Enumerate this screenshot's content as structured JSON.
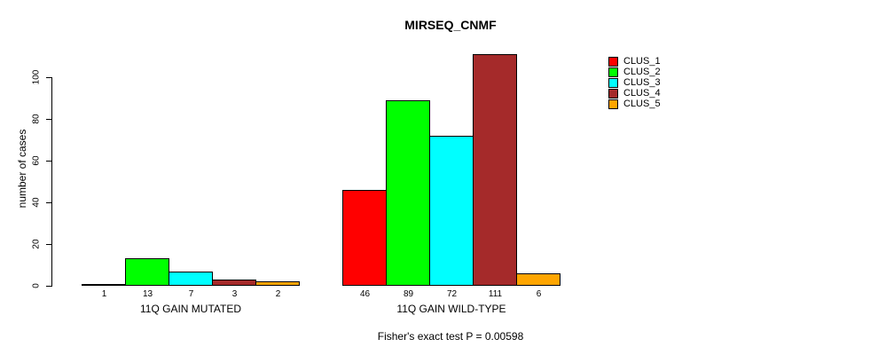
{
  "chart_data": {
    "type": "bar",
    "title": "MIRSEQ_CNMF",
    "ylabel": "number of cases",
    "xlabel": "",
    "annotation": "Fisher's exact test P = 0.00598",
    "categories": [
      "11Q GAIN MUTATED",
      "11Q GAIN WILD-TYPE"
    ],
    "series": [
      {
        "name": "CLUS_1",
        "color": "#ff0000",
        "values": [
          1,
          46
        ]
      },
      {
        "name": "CLUS_2",
        "color": "#00ff00",
        "values": [
          13,
          89
        ]
      },
      {
        "name": "CLUS_3",
        "color": "#00ffff",
        "values": [
          7,
          72
        ]
      },
      {
        "name": "CLUS_4",
        "color": "#a52a2a",
        "values": [
          3,
          111
        ]
      },
      {
        "name": "CLUS_5",
        "color": "#ffa500",
        "values": [
          2,
          6
        ]
      }
    ],
    "yticks": [
      0,
      20,
      40,
      60,
      80,
      100
    ],
    "ylim": [
      0,
      111
    ],
    "grid": false,
    "legend_position": "right",
    "bar_value_labels": true,
    "bar_border_color": "#000000",
    "background_color": "#ffffff"
  }
}
